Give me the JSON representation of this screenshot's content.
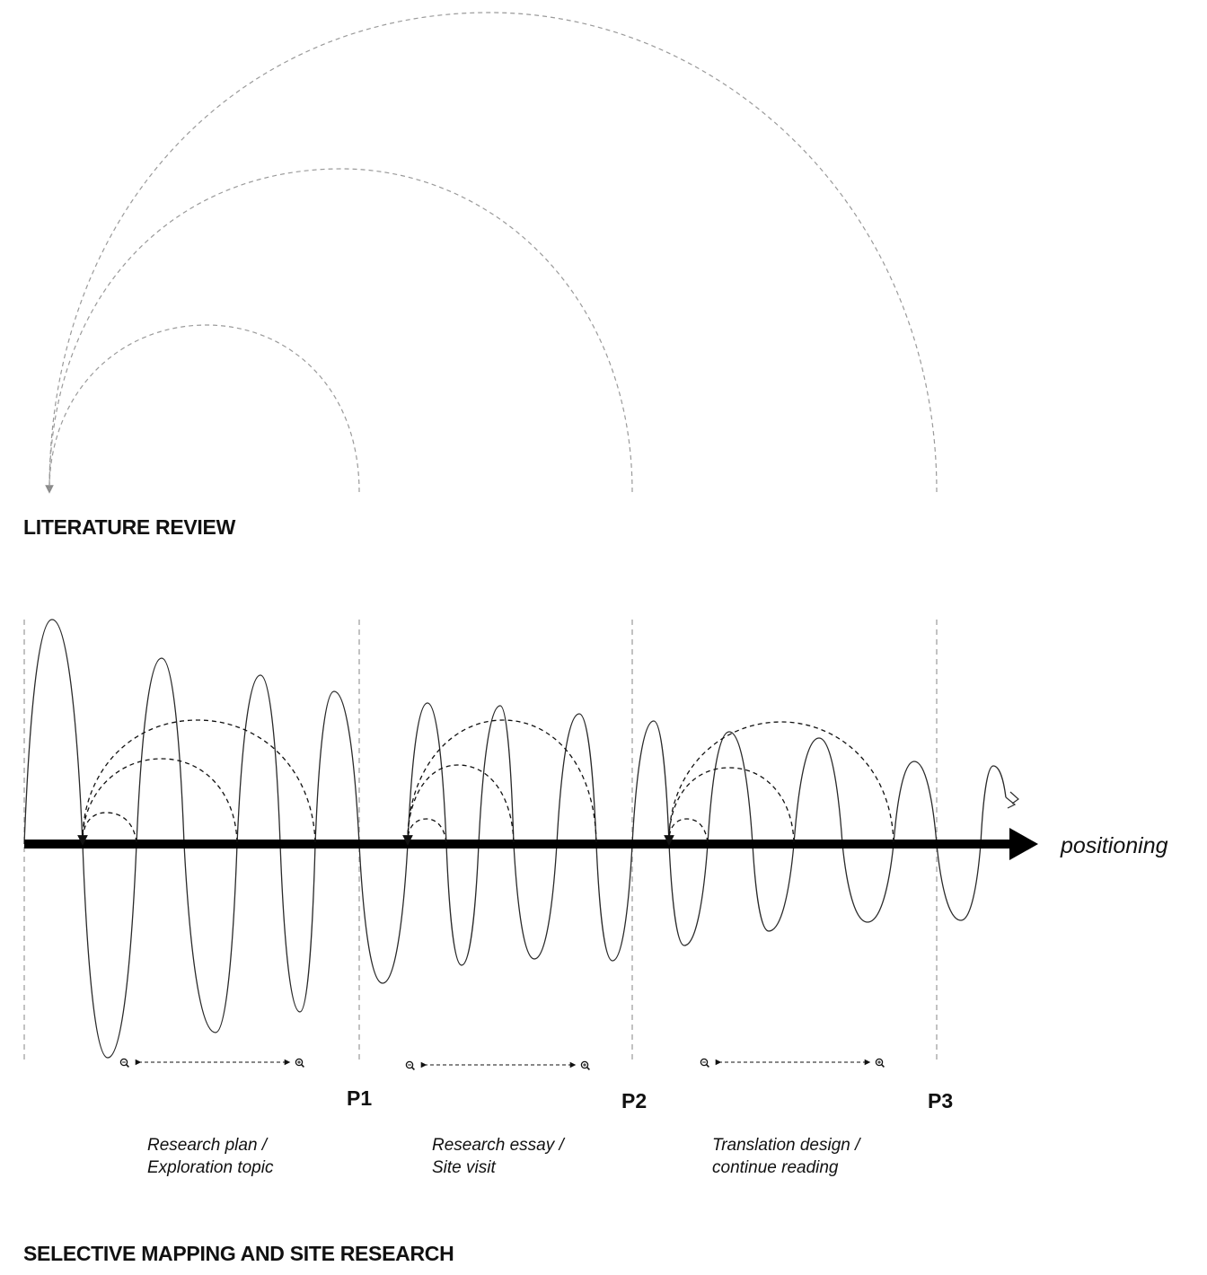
{
  "headings": {
    "top": "LITERATURE REVIEW",
    "bottom": "SELECTIVE MAPPING AND SITE RESEARCH"
  },
  "axis": {
    "label": "positioning"
  },
  "phases": [
    "P1",
    "P2",
    "P3"
  ],
  "captions": [
    {
      "line1": "Research plan /",
      "line2": "Exploration topic"
    },
    {
      "line1": "Research essay /",
      "line2": "Site visit"
    },
    {
      "line1": "Translation design /",
      "line2": "continue reading"
    }
  ],
  "colors": {
    "ink": "#111111",
    "dashed_guides": "#9a9a9a",
    "wave": "#2a2a2a"
  },
  "icons": [
    "zoom-out-icon",
    "zoom-in-icon"
  ]
}
